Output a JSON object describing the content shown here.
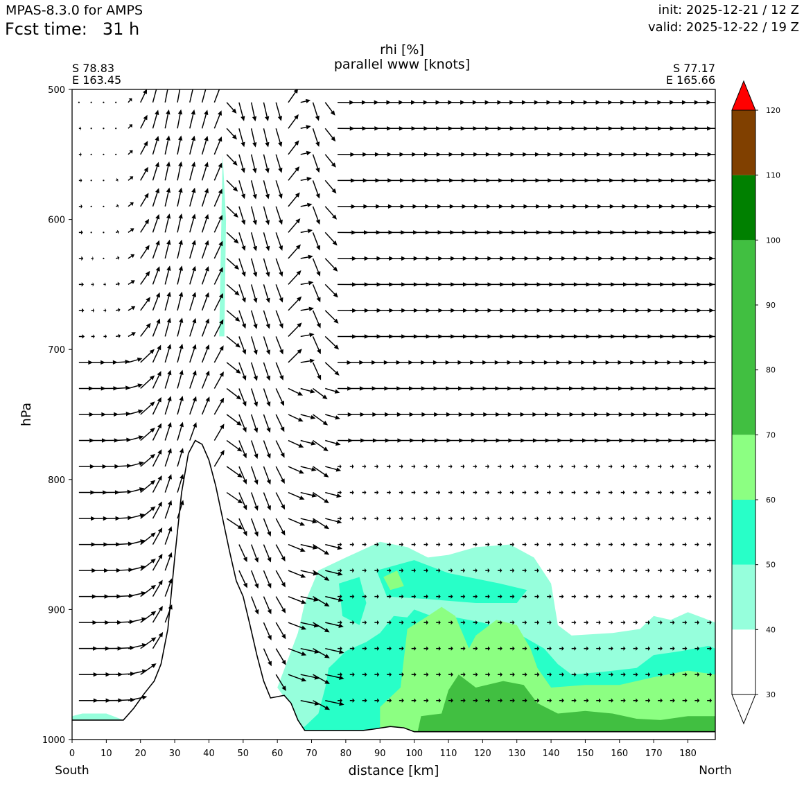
{
  "header": {
    "model": "MPAS-8.3.0 for AMPS",
    "fcst_label": "Fcst time:",
    "fcst_value": "31 h",
    "init": "init: 2025-12-21 / 12 Z",
    "valid": "valid: 2025-12-22 / 19 Z"
  },
  "chart_data": {
    "type": "cross-section",
    "title_line1": "rhi [%]",
    "title_line2": "parallel www [knots]",
    "start_point": {
      "lat": "S 78.83",
      "lon": "E 163.45"
    },
    "end_point": {
      "lat": "S 77.17",
      "lon": "E 165.66"
    },
    "xlabel": "distance [km]",
    "ylabel": "hPa",
    "xlim": [
      0,
      188
    ],
    "ylim": [
      1000,
      500
    ],
    "x_ticks": [
      0,
      10,
      20,
      30,
      40,
      50,
      60,
      70,
      80,
      90,
      100,
      110,
      120,
      130,
      140,
      150,
      160,
      170,
      180
    ],
    "y_ticks": [
      500,
      600,
      700,
      800,
      900,
      1000
    ],
    "left_end_label": "South",
    "right_end_label": "North",
    "colorbar": {
      "ticks": [
        30,
        40,
        50,
        60,
        70,
        80,
        90,
        100,
        110,
        120
      ],
      "levels": [
        30,
        40,
        50,
        60,
        70,
        100,
        110,
        120
      ],
      "colors": [
        "#ffffff",
        "#96ffdc",
        "#28ffc8",
        "#8cff82",
        "#41bf41",
        "#008000",
        "#804000",
        "#ff0000"
      ]
    },
    "terrain_profile": [
      [
        0,
        985
      ],
      [
        10,
        985
      ],
      [
        15,
        985
      ],
      [
        18,
        976
      ],
      [
        21,
        965
      ],
      [
        24,
        955
      ],
      [
        26,
        942
      ],
      [
        28,
        915
      ],
      [
        30,
        860
      ],
      [
        32,
        810
      ],
      [
        34,
        780
      ],
      [
        36,
        770
      ],
      [
        38,
        773
      ],
      [
        40,
        785
      ],
      [
        42,
        805
      ],
      [
        44,
        830
      ],
      [
        46,
        855
      ],
      [
        48,
        878
      ],
      [
        50,
        890
      ],
      [
        52,
        912
      ],
      [
        54,
        935
      ],
      [
        56,
        955
      ],
      [
        58,
        968
      ],
      [
        60,
        967
      ],
      [
        62,
        966
      ],
      [
        64,
        972
      ],
      [
        66,
        985
      ],
      [
        68,
        993
      ],
      [
        70,
        993
      ],
      [
        85,
        993
      ],
      [
        88,
        992
      ],
      [
        93,
        990
      ],
      [
        97,
        991
      ],
      [
        100,
        994
      ],
      [
        188,
        994
      ]
    ],
    "rh_regions": [
      {
        "level": 40,
        "polygon": [
          [
            0,
            985
          ],
          [
            15,
            985
          ],
          [
            10,
            980
          ],
          [
            3,
            980
          ],
          [
            0,
            982
          ]
        ]
      },
      {
        "level": 40,
        "polygon": [
          [
            43,
            690
          ],
          [
            44,
            550
          ],
          [
            45,
            600
          ],
          [
            44.5,
            690
          ]
        ]
      },
      {
        "level": 40,
        "polygon": [
          [
            60,
            960
          ],
          [
            66,
            918
          ],
          [
            68,
            895
          ],
          [
            72,
            870
          ],
          [
            80,
            860
          ],
          [
            90,
            848
          ],
          [
            98,
            852
          ],
          [
            104,
            860
          ],
          [
            110,
            858
          ],
          [
            118,
            852
          ],
          [
            128,
            850
          ],
          [
            135,
            860
          ],
          [
            140,
            880
          ],
          [
            142,
            912
          ],
          [
            146,
            920
          ],
          [
            158,
            918
          ],
          [
            166,
            915
          ],
          [
            170,
            905
          ],
          [
            175,
            908
          ],
          [
            180,
            902
          ],
          [
            185,
            907
          ],
          [
            188,
            910
          ],
          [
            188,
            994
          ],
          [
            66,
            994
          ],
          [
            64,
            975
          ]
        ]
      },
      {
        "level": 50,
        "polygon": [
          [
            64,
            994
          ],
          [
            68,
            990
          ],
          [
            72,
            980
          ],
          [
            74,
            960
          ],
          [
            75,
            945
          ],
          [
            77,
            940
          ],
          [
            80,
            932
          ],
          [
            86,
            925
          ],
          [
            90,
            918
          ],
          [
            94,
            905
          ],
          [
            98,
            906
          ],
          [
            100,
            900
          ],
          [
            104,
            904
          ],
          [
            110,
            905
          ],
          [
            120,
            910
          ],
          [
            130,
            918
          ],
          [
            138,
            930
          ],
          [
            142,
            942
          ],
          [
            146,
            950
          ],
          [
            155,
            948
          ],
          [
            165,
            945
          ],
          [
            170,
            935
          ],
          [
            178,
            932
          ],
          [
            186,
            928
          ],
          [
            188,
            930
          ],
          [
            188,
            994
          ]
        ]
      },
      {
        "level": 50,
        "polygon": [
          [
            78,
            880
          ],
          [
            84,
            875
          ],
          [
            86,
            895
          ],
          [
            84,
            912
          ],
          [
            79,
            905
          ]
        ]
      },
      {
        "level": 50,
        "polygon": [
          [
            89,
            870
          ],
          [
            100,
            862
          ],
          [
            110,
            872
          ],
          [
            125,
            880
          ],
          [
            133,
            885
          ],
          [
            130,
            895
          ],
          [
            118,
            895
          ],
          [
            104,
            892
          ],
          [
            92,
            890
          ]
        ]
      },
      {
        "level": 60,
        "polygon": [
          [
            90,
            975
          ],
          [
            96,
            960
          ],
          [
            98,
            915
          ],
          [
            104,
            905
          ],
          [
            108,
            898
          ],
          [
            112,
            905
          ],
          [
            116,
            930
          ],
          [
            118,
            920
          ],
          [
            124,
            908
          ],
          [
            130,
            912
          ],
          [
            134,
            930
          ],
          [
            136,
            945
          ],
          [
            140,
            960
          ],
          [
            150,
            958
          ],
          [
            160,
            958
          ],
          [
            170,
            952
          ],
          [
            180,
            947
          ],
          [
            188,
            950
          ],
          [
            188,
            994
          ],
          [
            90,
            994
          ]
        ]
      },
      {
        "level": 60,
        "polygon": [
          [
            91,
            875
          ],
          [
            95,
            870
          ],
          [
            97,
            882
          ],
          [
            93,
            885
          ]
        ]
      },
      {
        "level": 80,
        "polygon": [
          [
            101,
            994
          ],
          [
            102,
            982
          ],
          [
            108,
            980
          ],
          [
            110,
            962
          ],
          [
            113,
            950
          ],
          [
            118,
            960
          ],
          [
            126,
            955
          ],
          [
            132,
            958
          ],
          [
            136,
            972
          ],
          [
            142,
            980
          ],
          [
            150,
            978
          ],
          [
            158,
            980
          ],
          [
            165,
            984
          ],
          [
            172,
            985
          ],
          [
            180,
            982
          ],
          [
            188,
            982
          ],
          [
            188,
            994
          ]
        ]
      }
    ],
    "wind_vectors": {
      "x_start": 2,
      "x_step": 3.6,
      "p_start": 510,
      "p_step": 20,
      "count_x": 52,
      "count_p": 24,
      "units": "knots"
    }
  }
}
